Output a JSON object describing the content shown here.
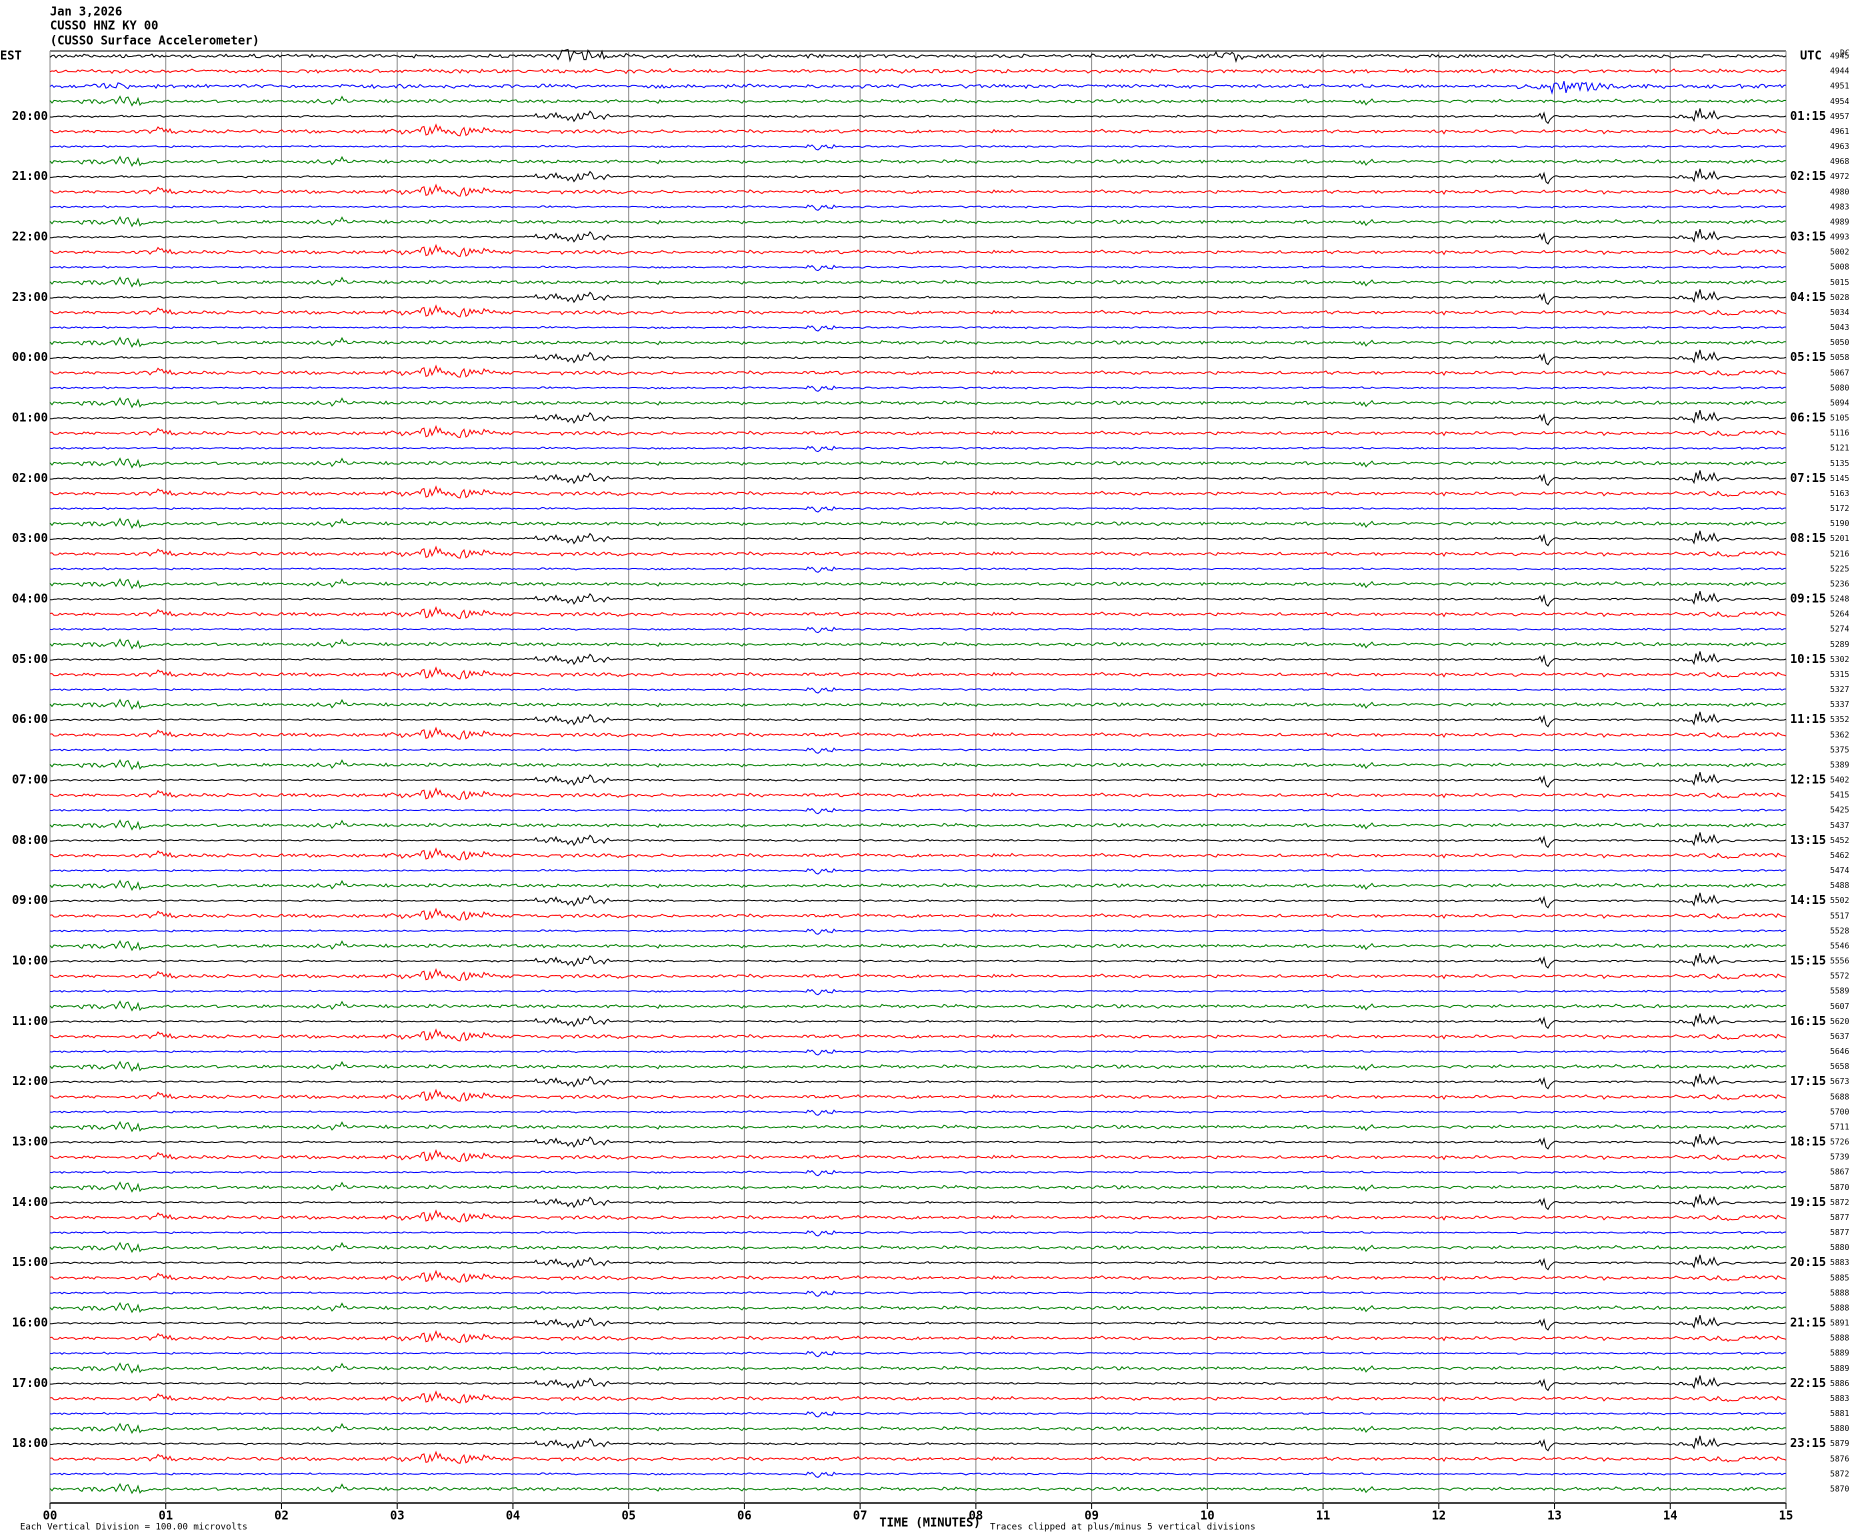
{
  "chart_data": {
    "type": "helicorder",
    "header": [
      "Jan 3,2026",
      "CUSSO HNZ KY 00",
      "(CUSSO Surface Accelerometer)"
    ],
    "left_zone": "EST",
    "right_zone": "UTC",
    "corner_label": "DC",
    "left_labels": [
      "20:00",
      "21:00",
      "22:00",
      "23:00",
      "00:00",
      "01:00",
      "02:00",
      "03:00",
      "04:00",
      "05:00",
      "06:00",
      "07:00",
      "08:00",
      "09:00",
      "10:00",
      "11:00",
      "12:00",
      "13:00",
      "14:00",
      "15:00",
      "16:00",
      "17:00",
      "18:00"
    ],
    "right_labels": [
      "01:15",
      "02:15",
      "03:15",
      "04:15",
      "05:15",
      "06:15",
      "07:15",
      "08:15",
      "09:15",
      "10:15",
      "11:15",
      "12:15",
      "13:15",
      "14:15",
      "15:15",
      "16:15",
      "17:15",
      "18:15",
      "19:15",
      "20:15",
      "21:15",
      "22:15",
      "23:15"
    ],
    "trace_labels": [
      4945,
      4944,
      4951,
      4954,
      4957,
      4961,
      4963,
      4968,
      4972,
      4980,
      4983,
      4989,
      4993,
      5002,
      5008,
      5015,
      5028,
      5034,
      5043,
      5050,
      5058,
      5067,
      5080,
      5094,
      5105,
      5116,
      5121,
      5135,
      5145,
      5163,
      5172,
      5190,
      5201,
      5216,
      5225,
      5236,
      5248,
      5264,
      5274,
      5289,
      5302,
      5315,
      5327,
      5337,
      5352,
      5362,
      5375,
      5389,
      5402,
      5415,
      5425,
      5437,
      5452,
      5462,
      5474,
      5488,
      5502,
      5517,
      5528,
      5546,
      5556,
      5572,
      5589,
      5607,
      5620,
      5637,
      5646,
      5658,
      5673,
      5688,
      5700,
      5711,
      5726,
      5739,
      5867,
      5870,
      5872,
      5877,
      5877,
      5880,
      5883,
      5885,
      5888,
      5888,
      5891,
      5888,
      5889,
      5889,
      5886,
      5883,
      5881,
      5880,
      5879,
      5876,
      5872,
      5870
    ],
    "colors": [
      "#000000",
      "#ff0000",
      "#0000ff",
      "#007f00"
    ],
    "xlim": [
      0,
      15
    ],
    "xticks": [
      {
        "value": 0,
        "label": "00"
      },
      {
        "value": 1,
        "label": "01"
      },
      {
        "value": 2,
        "label": "02"
      },
      {
        "value": 3,
        "label": "03"
      },
      {
        "value": 4,
        "label": "04"
      },
      {
        "value": 5,
        "label": "05"
      },
      {
        "value": 6,
        "label": "06"
      },
      {
        "value": 7,
        "label": "07"
      },
      {
        "value": 8,
        "label": "08"
      },
      {
        "value": 9,
        "label": "09"
      },
      10,
      11,
      12,
      13,
      14,
      15
    ],
    "xlabel": "TIME (MINUTES)",
    "footnote_left": "Each Vertical Division =  100.00 microvolts",
    "footnote_right": "Traces clipped at plus/minus 5 vertical divisions"
  }
}
